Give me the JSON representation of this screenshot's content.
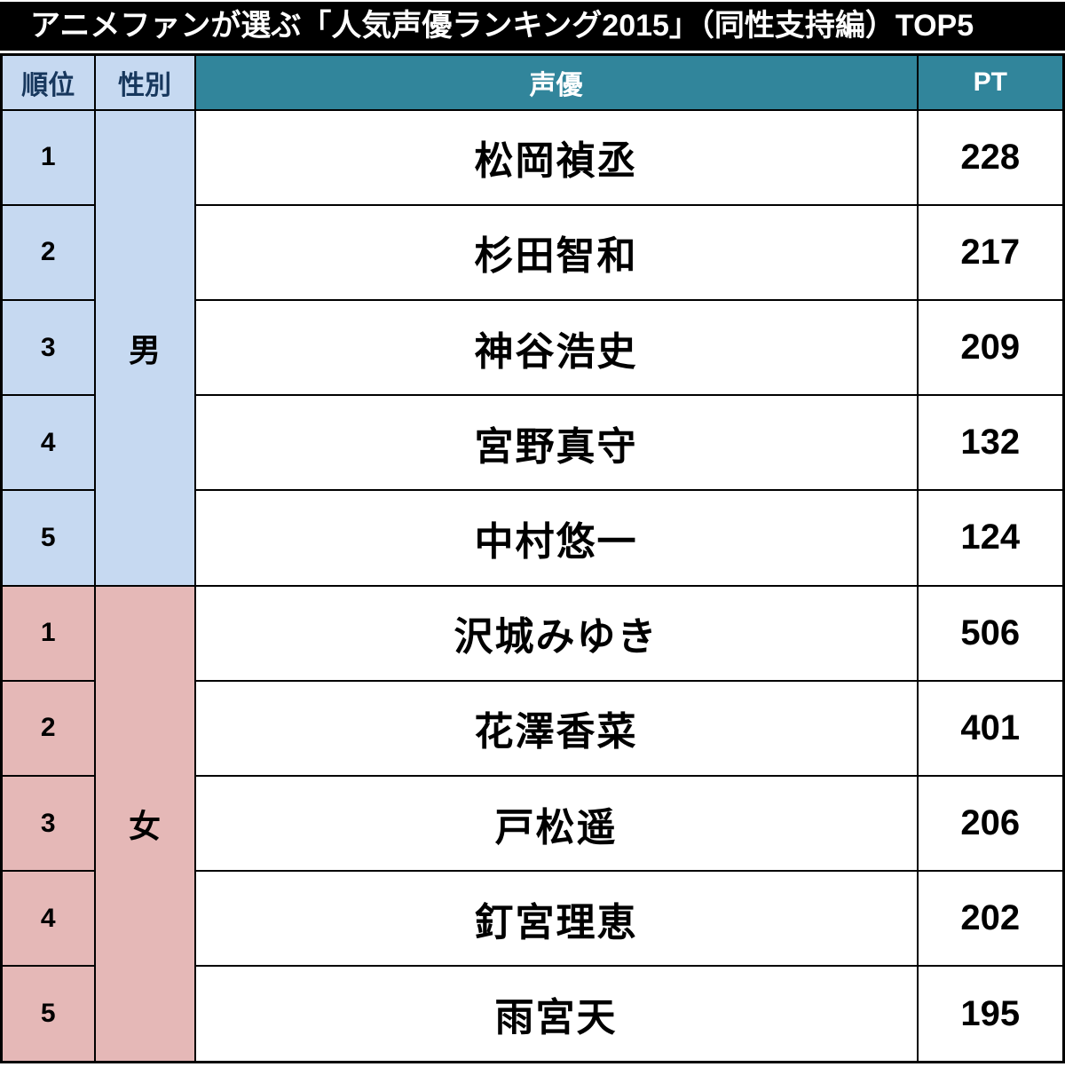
{
  "title": "アニメファンが選ぶ「人気声優ランキング2015」（同性支持編）TOP5",
  "table": {
    "headers": {
      "rank": "順位",
      "gender": "性別",
      "actor": "声優",
      "pt": "PT"
    },
    "groups": [
      {
        "gender": "男",
        "color": "#c6d9f1",
        "rows": [
          {
            "rank": "1",
            "actor": "松岡禎丞",
            "pt": "228"
          },
          {
            "rank": "2",
            "actor": "杉田智和",
            "pt": "217"
          },
          {
            "rank": "3",
            "actor": "神谷浩史",
            "pt": "209"
          },
          {
            "rank": "4",
            "actor": "宮野真守",
            "pt": "132"
          },
          {
            "rank": "5",
            "actor": "中村悠一",
            "pt": "124"
          }
        ]
      },
      {
        "gender": "女",
        "color": "#e5b8b7",
        "rows": [
          {
            "rank": "1",
            "actor": "沢城みゆき",
            "pt": "506"
          },
          {
            "rank": "2",
            "actor": "花澤香菜",
            "pt": "401"
          },
          {
            "rank": "3",
            "actor": "戸松遥",
            "pt": "206"
          },
          {
            "rank": "4",
            "actor": "釘宮理恵",
            "pt": "202"
          },
          {
            "rank": "5",
            "actor": "雨宮天",
            "pt": "195"
          }
        ]
      }
    ]
  },
  "colors": {
    "title_bg": "#000000",
    "title_text": "#ffffff",
    "header_teal_bg": "#31859b",
    "header_teal_text": "#ffffff",
    "header_light_bg": "#c6d9f1",
    "header_light_text": "#17375d",
    "male_bg": "#c6d9f1",
    "female_bg": "#e5b8b7",
    "cell_bg": "#ffffff",
    "border": "#000000"
  },
  "chart_data": {
    "type": "table",
    "title": "アニメファンが選ぶ「人気声優ランキング2015」（同性支持編）TOP5",
    "columns": [
      "順位",
      "性別",
      "声優",
      "PT"
    ],
    "rows": [
      [
        1,
        "男",
        "松岡禎丞",
        228
      ],
      [
        2,
        "男",
        "杉田智和",
        217
      ],
      [
        3,
        "男",
        "神谷浩史",
        209
      ],
      [
        4,
        "男",
        "宮野真守",
        132
      ],
      [
        5,
        "男",
        "中村悠一",
        124
      ],
      [
        1,
        "女",
        "沢城みゆき",
        506
      ],
      [
        2,
        "女",
        "花澤香菜",
        401
      ],
      [
        3,
        "女",
        "戸松遥",
        206
      ],
      [
        4,
        "女",
        "釘宮理恵",
        202
      ],
      [
        5,
        "女",
        "雨宮天",
        195
      ]
    ]
  }
}
